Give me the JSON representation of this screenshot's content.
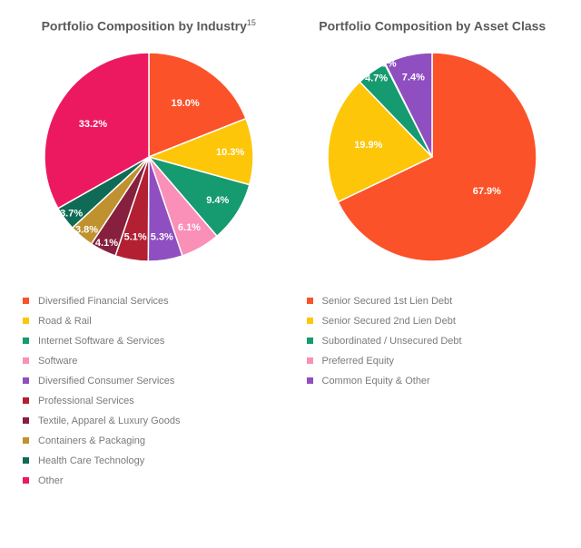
{
  "chart_left": {
    "type": "pie",
    "title": "Portfolio Composition by Industry",
    "title_sup": "15",
    "title_color": "#5a5a5a",
    "title_fontsize": 14,
    "radius": 115,
    "label_fontsize": 11,
    "label_color": "#ffffff",
    "background_color": "#ffffff",
    "start_angle_deg": -90,
    "slices": [
      {
        "label": "Diversified Financial Services",
        "value": 19.0,
        "color": "#fb5229",
        "show_label": "19.0%"
      },
      {
        "label": "Road & Rail",
        "value": 10.3,
        "color": "#fdc609",
        "show_label": "10.3%"
      },
      {
        "label": "Internet Software & Services",
        "value": 9.4,
        "color": "#169a6f",
        "show_label": "9.4%"
      },
      {
        "label": "Software",
        "value": 6.1,
        "color": "#fa8fb8",
        "show_label": "6.1%"
      },
      {
        "label": "Diversified Consumer Services",
        "value": 5.3,
        "color": "#8f4fc0",
        "show_label": "5.3%"
      },
      {
        "label": "Professional Services",
        "value": 5.1,
        "color": "#b22032",
        "show_label": "5.1%"
      },
      {
        "label": "Textile, Apparel & Luxury Goods",
        "value": 4.1,
        "color": "#86203e",
        "show_label": "4.1%"
      },
      {
        "label": "Containers & Packaging",
        "value": 3.8,
        "color": "#c0912f",
        "show_label": "3.8%"
      },
      {
        "label": "Health Care Technology",
        "value": 3.7,
        "color": "#0f6b55",
        "show_label": "3.7%"
      },
      {
        "label": "Other",
        "value": 33.2,
        "color": "#ec1961",
        "show_label": "33.2%"
      }
    ]
  },
  "chart_right": {
    "type": "pie",
    "title": "Portfolio Composition by Asset Class",
    "title_sup": "",
    "title_color": "#5a5a5a",
    "title_fontsize": 14,
    "radius": 115,
    "label_fontsize": 11,
    "label_color": "#ffffff",
    "background_color": "#ffffff",
    "start_angle_deg": -90,
    "slices": [
      {
        "label": "Senior Secured 1st Lien Debt",
        "value": 67.9,
        "color": "#fb5229",
        "show_label": "67.9%"
      },
      {
        "label": "Senior Secured 2nd Lien Debt",
        "value": 19.9,
        "color": "#fdc609",
        "show_label": "19.9%"
      },
      {
        "label": "Subordinated / Unsecured Debt",
        "value": 4.7,
        "color": "#169a6f",
        "show_label": "4.7%"
      },
      {
        "label": "Preferred Equity",
        "value": 0.1,
        "color": "#fa8fb8",
        "show_label": "0.1%"
      },
      {
        "label": "Common Equity & Other",
        "value": 7.4,
        "color": "#8f4fc0",
        "show_label": "7.4%"
      }
    ]
  },
  "legend_left": [
    {
      "label": "Diversified Financial Services",
      "color": "#fb5229"
    },
    {
      "label": "Road & Rail",
      "color": "#fdc609"
    },
    {
      "label": "Internet Software & Services",
      "color": "#169a6f"
    },
    {
      "label": "Software",
      "color": "#fa8fb8"
    },
    {
      "label": "Diversified Consumer Services",
      "color": "#8f4fc0"
    },
    {
      "label": "Professional Services",
      "color": "#b22032"
    },
    {
      "label": "Textile, Apparel & Luxury Goods",
      "color": "#86203e"
    },
    {
      "label": "Containers & Packaging",
      "color": "#c0912f"
    },
    {
      "label": "Health Care Technology",
      "color": "#0f6b55"
    },
    {
      "label": "Other",
      "color": "#ec1961"
    }
  ],
  "legend_right": [
    {
      "label": "Senior Secured 1st Lien Debt",
      "color": "#fb5229"
    },
    {
      "label": "Senior Secured 2nd Lien Debt",
      "color": "#fdc609"
    },
    {
      "label": "Subordinated / Unsecured Debt",
      "color": "#169a6f"
    },
    {
      "label": "Preferred Equity",
      "color": "#fa8fb8"
    },
    {
      "label": "Common Equity & Other",
      "color": "#8f4fc0"
    }
  ]
}
